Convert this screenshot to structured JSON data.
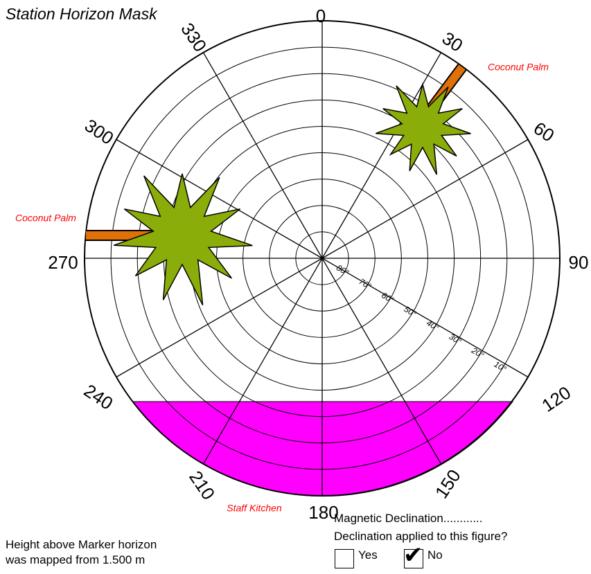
{
  "title": "Station Horizon Mask",
  "azimuth_labels": [
    "0",
    "30",
    "60",
    "90",
    "120",
    "150",
    "180",
    "210",
    "240",
    "270",
    "300",
    "330"
  ],
  "elevation_labels": [
    "80°",
    "70°",
    "60°",
    "50°",
    "40°",
    "30°",
    "20°",
    "10°"
  ],
  "obstructions": [
    {
      "label": "Coconut Palm",
      "type": "tree",
      "azimuth_deg": 35,
      "elevation_deg": 40,
      "color": "#8aad0a",
      "trunk_color": "#e07008"
    },
    {
      "label": "Coconut Palm",
      "type": "tree",
      "azimuth_deg": 282,
      "elevation_deg": 15,
      "color": "#8aad0a",
      "trunk_color": "#e07008"
    },
    {
      "label": "Staff Kitchen",
      "type": "building",
      "azimuth_start_deg": 126,
      "azimuth_end_deg": 234,
      "color": "#ff00ff"
    }
  ],
  "footer": {
    "height_line1": "Height above Marker horizon",
    "height_line2": "was mapped from 1.500 m",
    "declination": "Magnetic Declination............",
    "declination_question": "Declination applied to this figure?",
    "option_yes": "Yes",
    "option_no": "No",
    "selected": "No"
  }
}
